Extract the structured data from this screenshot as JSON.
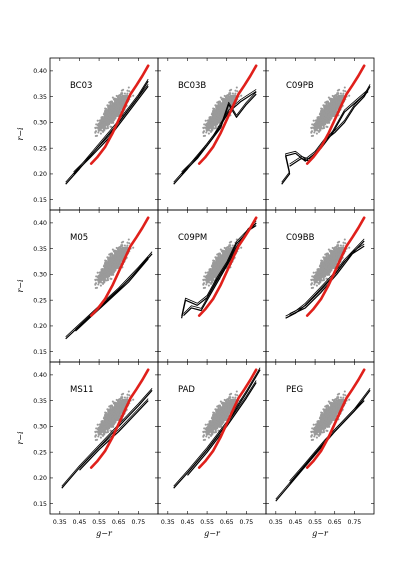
{
  "chart_data": {
    "type": "scatter",
    "layout": "3x3 grid, shared axes",
    "xlabel": "g−r",
    "ylabel": "r−i",
    "xlim": [
      0.3,
      0.85
    ],
    "ylim": [
      0.13,
      0.425
    ],
    "xticks": [
      "0.35",
      "0.45",
      "0.55",
      "0.65",
      "0.75"
    ],
    "yticks": [
      "0.15",
      "0.20",
      "0.25",
      "0.30",
      "0.35",
      "0.40"
    ],
    "colors": {
      "scatter": "#9a9a9a",
      "red_track": "#e0201b",
      "model_tracks": "#000000"
    },
    "red_track": {
      "x": [
        0.51,
        0.54,
        0.58,
        0.62,
        0.65,
        0.68,
        0.71,
        0.74,
        0.77,
        0.8
      ],
      "y": [
        0.22,
        0.232,
        0.252,
        0.28,
        0.305,
        0.33,
        0.355,
        0.372,
        0.39,
        0.41
      ]
    },
    "panels": [
      {
        "label": "BC03",
        "tracks": [
          {
            "x": [
              0.38,
              0.45,
              0.55,
              0.65,
              0.75,
              0.8
            ],
            "y": [
              0.18,
              0.21,
              0.255,
              0.3,
              0.35,
              0.38
            ]
          },
          {
            "x": [
              0.42,
              0.5,
              0.6,
              0.7,
              0.8
            ],
            "y": [
              0.2,
              0.23,
              0.27,
              0.32,
              0.37
            ]
          }
        ]
      },
      {
        "label": "BC03B",
        "tracks": [
          {
            "x": [
              0.38,
              0.45,
              0.55,
              0.62,
              0.66,
              0.7,
              0.75,
              0.8
            ],
            "y": [
              0.18,
              0.21,
              0.255,
              0.29,
              0.335,
              0.31,
              0.335,
              0.355
            ]
          },
          {
            "x": [
              0.42,
              0.5,
              0.58,
              0.66,
              0.72,
              0.8
            ],
            "y": [
              0.2,
              0.23,
              0.27,
              0.32,
              0.34,
              0.36
            ]
          }
        ]
      },
      {
        "label": "C09PB",
        "tracks": [
          {
            "x": [
              0.38,
              0.42,
              0.4,
              0.45,
              0.5,
              0.55,
              0.6,
              0.65,
              0.7,
              0.75,
              0.8,
              0.83
            ],
            "y": [
              0.18,
              0.2,
              0.235,
              0.24,
              0.225,
              0.24,
              0.265,
              0.28,
              0.3,
              0.33,
              0.35,
              0.37
            ]
          },
          {
            "x": [
              0.42,
              0.48,
              0.52,
              0.58,
              0.64,
              0.7,
              0.76,
              0.82
            ],
            "y": [
              0.215,
              0.23,
              0.225,
              0.25,
              0.28,
              0.32,
              0.34,
              0.36
            ]
          }
        ]
      },
      {
        "label": "M05",
        "tracks": [
          {
            "x": [
              0.38,
              0.45,
              0.55,
              0.65,
              0.75,
              0.82
            ],
            "y": [
              0.175,
              0.2,
              0.235,
              0.27,
              0.31,
              0.34
            ]
          },
          {
            "x": [
              0.43,
              0.5,
              0.6,
              0.7,
              0.8
            ],
            "y": [
              0.19,
              0.215,
              0.25,
              0.285,
              0.33
            ]
          }
        ]
      },
      {
        "label": "C09PM",
        "tracks": [
          {
            "x": [
              0.42,
              0.44,
              0.5,
              0.55,
              0.6,
              0.65,
              0.7,
              0.75,
              0.8
            ],
            "y": [
              0.215,
              0.25,
              0.24,
              0.255,
              0.29,
              0.32,
              0.36,
              0.38,
              0.4
            ]
          },
          {
            "x": [
              0.43,
              0.47,
              0.52,
              0.58,
              0.64,
              0.7,
              0.76,
              0.8
            ],
            "y": [
              0.22,
              0.235,
              0.23,
              0.27,
              0.31,
              0.35,
              0.385,
              0.395
            ]
          }
        ]
      },
      {
        "label": "C09BB",
        "tracks": [
          {
            "x": [
              0.4,
              0.45,
              0.5,
              0.55,
              0.6,
              0.65,
              0.7,
              0.75,
              0.8
            ],
            "y": [
              0.215,
              0.225,
              0.24,
              0.26,
              0.28,
              0.3,
              0.325,
              0.345,
              0.365
            ]
          },
          {
            "x": [
              0.42,
              0.5,
              0.58,
              0.66,
              0.74,
              0.8
            ],
            "y": [
              0.22,
              0.235,
              0.265,
              0.3,
              0.34,
              0.355
            ]
          }
        ]
      },
      {
        "label": "MS11",
        "tracks": [
          {
            "x": [
              0.36,
              0.45,
              0.55,
              0.65,
              0.75,
              0.82
            ],
            "y": [
              0.18,
              0.22,
              0.26,
              0.3,
              0.34,
              0.37
            ]
          },
          {
            "x": [
              0.45,
              0.55,
              0.65,
              0.75,
              0.8
            ],
            "y": [
              0.215,
              0.255,
              0.29,
              0.33,
              0.35
            ]
          }
        ]
      },
      {
        "label": "PAD",
        "tracks": [
          {
            "x": [
              0.38,
              0.45,
              0.55,
              0.65,
              0.75,
              0.82
            ],
            "y": [
              0.18,
              0.21,
              0.255,
              0.305,
              0.365,
              0.41
            ]
          },
          {
            "x": [
              0.45,
              0.55,
              0.65,
              0.75,
              0.8
            ],
            "y": [
              0.205,
              0.25,
              0.3,
              0.355,
              0.385
            ]
          }
        ]
      },
      {
        "label": "PEG",
        "tracks": [
          {
            "x": [
              0.35,
              0.45,
              0.55,
              0.65,
              0.75,
              0.83
            ],
            "y": [
              0.155,
              0.2,
              0.245,
              0.29,
              0.33,
              0.37
            ]
          },
          {
            "x": [
              0.42,
              0.5,
              0.6,
              0.7,
              0.8
            ],
            "y": [
              0.19,
              0.225,
              0.27,
              0.31,
              0.35
            ]
          }
        ]
      }
    ]
  }
}
